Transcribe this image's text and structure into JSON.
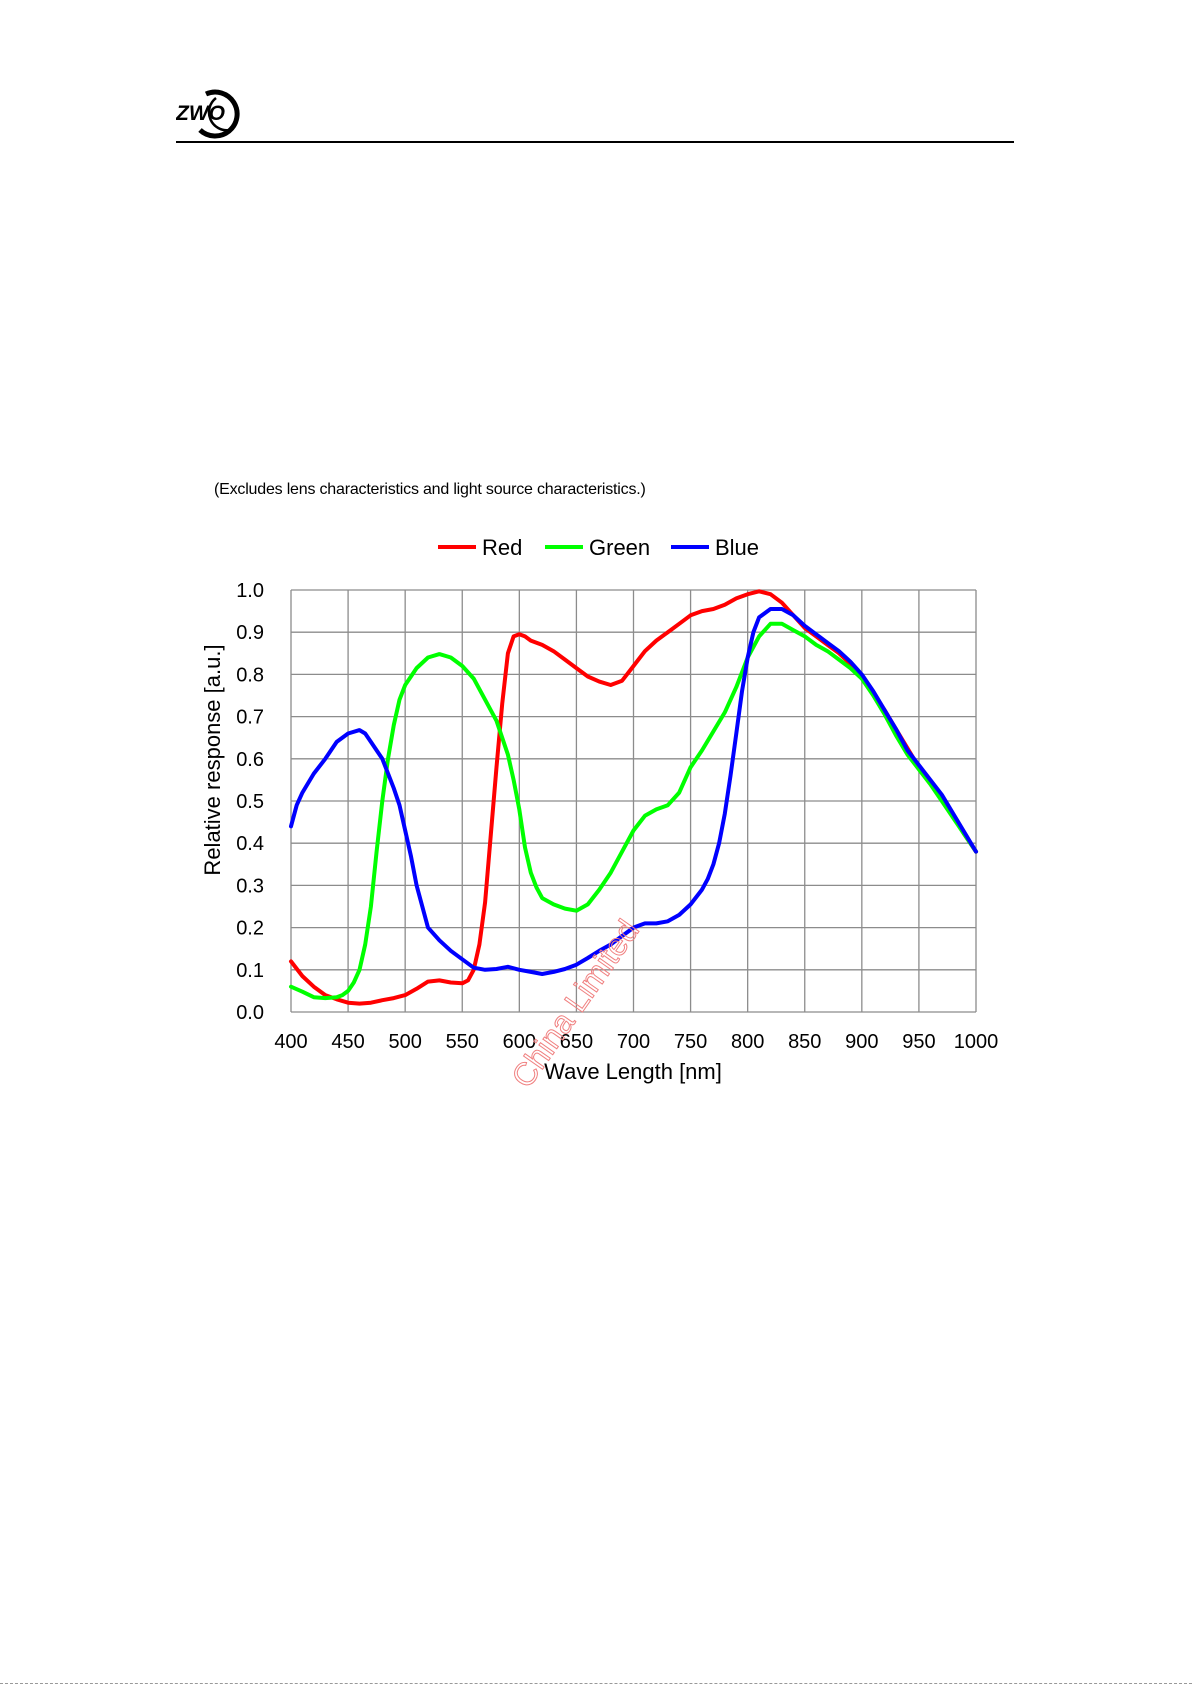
{
  "header": {
    "logo_text": "ZWO"
  },
  "note": "(Excludes lens characteristics and light source characteristics.)",
  "watermark": "China Limited",
  "colors": {
    "red": "#ff0000",
    "green": "#00ff00",
    "blue": "#0000ff",
    "grid": "#8c8c8c",
    "watermark": "#f08080"
  },
  "chart_data": {
    "type": "line",
    "title": "",
    "xlabel": "Wave Length [nm]",
    "ylabel": "Relative response [a.u.]",
    "xlim": [
      400,
      1000
    ],
    "ylim": [
      0.0,
      1.0
    ],
    "grid": true,
    "legend_position": "top-center",
    "x_ticks": [
      "400",
      "450",
      "500",
      "550",
      "600",
      "650",
      "700",
      "750",
      "800",
      "850",
      "900",
      "950",
      "1000"
    ],
    "y_ticks": [
      "0.0",
      "0.1",
      "0.2",
      "0.3",
      "0.4",
      "0.5",
      "0.6",
      "0.7",
      "0.8",
      "0.9",
      "1.0"
    ],
    "series": [
      {
        "name": "Red",
        "color": "#ff0000",
        "points": [
          [
            400,
            0.12
          ],
          [
            410,
            0.085
          ],
          [
            420,
            0.06
          ],
          [
            430,
            0.04
          ],
          [
            440,
            0.03
          ],
          [
            450,
            0.022
          ],
          [
            460,
            0.02
          ],
          [
            470,
            0.022
          ],
          [
            480,
            0.028
          ],
          [
            490,
            0.033
          ],
          [
            500,
            0.04
          ],
          [
            510,
            0.055
          ],
          [
            520,
            0.072
          ],
          [
            530,
            0.075
          ],
          [
            540,
            0.07
          ],
          [
            550,
            0.068
          ],
          [
            555,
            0.075
          ],
          [
            560,
            0.1
          ],
          [
            565,
            0.16
          ],
          [
            570,
            0.26
          ],
          [
            575,
            0.42
          ],
          [
            580,
            0.58
          ],
          [
            585,
            0.73
          ],
          [
            590,
            0.85
          ],
          [
            595,
            0.89
          ],
          [
            600,
            0.895
          ],
          [
            605,
            0.89
          ],
          [
            610,
            0.88
          ],
          [
            620,
            0.87
          ],
          [
            630,
            0.855
          ],
          [
            640,
            0.835
          ],
          [
            650,
            0.815
          ],
          [
            660,
            0.795
          ],
          [
            670,
            0.783
          ],
          [
            680,
            0.775
          ],
          [
            690,
            0.785
          ],
          [
            700,
            0.82
          ],
          [
            710,
            0.855
          ],
          [
            720,
            0.88
          ],
          [
            730,
            0.9
          ],
          [
            740,
            0.92
          ],
          [
            750,
            0.94
          ],
          [
            760,
            0.95
          ],
          [
            770,
            0.955
          ],
          [
            780,
            0.965
          ],
          [
            790,
            0.98
          ],
          [
            800,
            0.99
          ],
          [
            810,
            0.997
          ],
          [
            820,
            0.99
          ],
          [
            830,
            0.97
          ],
          [
            840,
            0.94
          ],
          [
            850,
            0.91
          ],
          [
            860,
            0.89
          ],
          [
            870,
            0.87
          ],
          [
            880,
            0.85
          ],
          [
            890,
            0.825
          ],
          [
            900,
            0.795
          ],
          [
            910,
            0.755
          ],
          [
            920,
            0.715
          ],
          [
            930,
            0.67
          ],
          [
            940,
            0.625
          ],
          [
            950,
            0.58
          ],
          [
            960,
            0.545
          ],
          [
            970,
            0.505
          ],
          [
            980,
            0.465
          ],
          [
            990,
            0.42
          ],
          [
            1000,
            0.38
          ]
        ]
      },
      {
        "name": "Green",
        "color": "#00ff00",
        "points": [
          [
            400,
            0.06
          ],
          [
            410,
            0.048
          ],
          [
            420,
            0.035
          ],
          [
            430,
            0.033
          ],
          [
            440,
            0.035
          ],
          [
            445,
            0.04
          ],
          [
            450,
            0.05
          ],
          [
            455,
            0.07
          ],
          [
            460,
            0.1
          ],
          [
            465,
            0.16
          ],
          [
            470,
            0.25
          ],
          [
            475,
            0.38
          ],
          [
            480,
            0.5
          ],
          [
            485,
            0.6
          ],
          [
            490,
            0.68
          ],
          [
            495,
            0.74
          ],
          [
            500,
            0.775
          ],
          [
            510,
            0.815
          ],
          [
            520,
            0.84
          ],
          [
            530,
            0.848
          ],
          [
            540,
            0.84
          ],
          [
            550,
            0.82
          ],
          [
            560,
            0.79
          ],
          [
            570,
            0.74
          ],
          [
            580,
            0.69
          ],
          [
            590,
            0.61
          ],
          [
            595,
            0.55
          ],
          [
            600,
            0.48
          ],
          [
            605,
            0.39
          ],
          [
            610,
            0.33
          ],
          [
            615,
            0.295
          ],
          [
            620,
            0.27
          ],
          [
            630,
            0.255
          ],
          [
            640,
            0.245
          ],
          [
            650,
            0.24
          ],
          [
            660,
            0.255
          ],
          [
            670,
            0.29
          ],
          [
            680,
            0.33
          ],
          [
            690,
            0.38
          ],
          [
            700,
            0.43
          ],
          [
            710,
            0.465
          ],
          [
            720,
            0.48
          ],
          [
            730,
            0.49
          ],
          [
            740,
            0.52
          ],
          [
            750,
            0.58
          ],
          [
            760,
            0.62
          ],
          [
            770,
            0.665
          ],
          [
            780,
            0.71
          ],
          [
            790,
            0.77
          ],
          [
            800,
            0.84
          ],
          [
            810,
            0.89
          ],
          [
            820,
            0.92
          ],
          [
            830,
            0.92
          ],
          [
            840,
            0.905
          ],
          [
            850,
            0.89
          ],
          [
            860,
            0.87
          ],
          [
            870,
            0.855
          ],
          [
            880,
            0.835
          ],
          [
            890,
            0.815
          ],
          [
            900,
            0.79
          ],
          [
            910,
            0.75
          ],
          [
            920,
            0.705
          ],
          [
            930,
            0.655
          ],
          [
            940,
            0.61
          ],
          [
            950,
            0.575
          ],
          [
            960,
            0.54
          ],
          [
            970,
            0.5
          ],
          [
            980,
            0.46
          ],
          [
            990,
            0.42
          ],
          [
            1000,
            0.38
          ]
        ]
      },
      {
        "name": "Blue",
        "color": "#0000ff",
        "points": [
          [
            400,
            0.44
          ],
          [
            405,
            0.49
          ],
          [
            410,
            0.52
          ],
          [
            420,
            0.565
          ],
          [
            430,
            0.6
          ],
          [
            440,
            0.64
          ],
          [
            450,
            0.66
          ],
          [
            460,
            0.668
          ],
          [
            465,
            0.66
          ],
          [
            470,
            0.64
          ],
          [
            480,
            0.6
          ],
          [
            490,
            0.53
          ],
          [
            495,
            0.49
          ],
          [
            500,
            0.43
          ],
          [
            505,
            0.37
          ],
          [
            510,
            0.3
          ],
          [
            515,
            0.25
          ],
          [
            520,
            0.2
          ],
          [
            530,
            0.17
          ],
          [
            540,
            0.145
          ],
          [
            550,
            0.125
          ],
          [
            560,
            0.105
          ],
          [
            570,
            0.1
          ],
          [
            580,
            0.102
          ],
          [
            590,
            0.107
          ],
          [
            600,
            0.1
          ],
          [
            610,
            0.095
          ],
          [
            620,
            0.09
          ],
          [
            630,
            0.095
          ],
          [
            640,
            0.102
          ],
          [
            650,
            0.112
          ],
          [
            660,
            0.128
          ],
          [
            670,
            0.145
          ],
          [
            680,
            0.16
          ],
          [
            690,
            0.18
          ],
          [
            700,
            0.2
          ],
          [
            710,
            0.21
          ],
          [
            720,
            0.21
          ],
          [
            730,
            0.215
          ],
          [
            740,
            0.23
          ],
          [
            750,
            0.255
          ],
          [
            760,
            0.29
          ],
          [
            765,
            0.315
          ],
          [
            770,
            0.35
          ],
          [
            775,
            0.4
          ],
          [
            780,
            0.47
          ],
          [
            785,
            0.56
          ],
          [
            790,
            0.66
          ],
          [
            795,
            0.76
          ],
          [
            800,
            0.84
          ],
          [
            805,
            0.9
          ],
          [
            810,
            0.935
          ],
          [
            820,
            0.955
          ],
          [
            830,
            0.955
          ],
          [
            840,
            0.94
          ],
          [
            850,
            0.915
          ],
          [
            860,
            0.895
          ],
          [
            870,
            0.875
          ],
          [
            880,
            0.855
          ],
          [
            890,
            0.83
          ],
          [
            900,
            0.8
          ],
          [
            910,
            0.76
          ],
          [
            920,
            0.715
          ],
          [
            930,
            0.67
          ],
          [
            940,
            0.62
          ],
          [
            950,
            0.585
          ],
          [
            960,
            0.55
          ],
          [
            970,
            0.515
          ],
          [
            980,
            0.47
          ],
          [
            990,
            0.425
          ],
          [
            1000,
            0.38
          ]
        ]
      }
    ]
  }
}
